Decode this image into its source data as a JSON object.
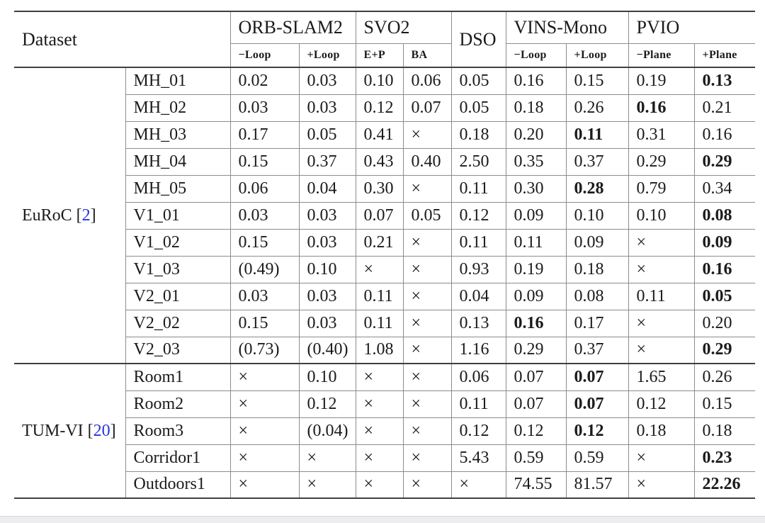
{
  "colors": {
    "citation_blue": "#2433e0",
    "rule_dark": "#3f3f3f",
    "rule_thin": "#8c8c8c",
    "text": "#1b1b1b",
    "footer_bar": "#ededef"
  },
  "table": {
    "header": {
      "dataset": "Dataset",
      "groups": [
        {
          "label": "ORB-SLAM2",
          "subs": [
            "−Loop",
            "+Loop"
          ]
        },
        {
          "label": "SVO2",
          "subs": [
            "E+P",
            "BA"
          ]
        },
        {
          "label": "DSO",
          "subs": []
        },
        {
          "label": "VINS-Mono",
          "subs": [
            "−Loop",
            "+Loop"
          ]
        },
        {
          "label": "PVIO",
          "subs": [
            "−Plane",
            "+Plane"
          ]
        }
      ]
    },
    "sections": [
      {
        "name": "EuRoC",
        "citation": "2",
        "rows": [
          {
            "seq": "MH_01",
            "cells": [
              "0.02",
              "0.03",
              "0.10",
              "0.06",
              "0.05",
              "0.16",
              "0.15",
              "0.19",
              "0.13"
            ],
            "bold": [
              8
            ]
          },
          {
            "seq": "MH_02",
            "cells": [
              "0.03",
              "0.03",
              "0.12",
              "0.07",
              "0.05",
              "0.18",
              "0.26",
              "0.16",
              "0.21"
            ],
            "bold": [
              7
            ]
          },
          {
            "seq": "MH_03",
            "cells": [
              "0.17",
              "0.05",
              "0.41",
              "×",
              "0.18",
              "0.20",
              "0.11",
              "0.31",
              "0.16"
            ],
            "bold": [
              6
            ]
          },
          {
            "seq": "MH_04",
            "cells": [
              "0.15",
              "0.37",
              "0.43",
              "0.40",
              "2.50",
              "0.35",
              "0.37",
              "0.29",
              "0.29"
            ],
            "bold": [
              8
            ]
          },
          {
            "seq": "MH_05",
            "cells": [
              "0.06",
              "0.04",
              "0.30",
              "×",
              "0.11",
              "0.30",
              "0.28",
              "0.79",
              "0.34"
            ],
            "bold": [
              6
            ]
          },
          {
            "seq": "V1_01",
            "cells": [
              "0.03",
              "0.03",
              "0.07",
              "0.05",
              "0.12",
              "0.09",
              "0.10",
              "0.10",
              "0.08"
            ],
            "bold": [
              8
            ]
          },
          {
            "seq": "V1_02",
            "cells": [
              "0.15",
              "0.03",
              "0.21",
              "×",
              "0.11",
              "0.11",
              "0.09",
              "×",
              "0.09"
            ],
            "bold": [
              8
            ]
          },
          {
            "seq": "V1_03",
            "cells": [
              "(0.49)",
              "0.10",
              "×",
              "×",
              "0.93",
              "0.19",
              "0.18",
              "×",
              "0.16"
            ],
            "bold": [
              8
            ]
          },
          {
            "seq": "V2_01",
            "cells": [
              "0.03",
              "0.03",
              "0.11",
              "×",
              "0.04",
              "0.09",
              "0.08",
              "0.11",
              "0.05"
            ],
            "bold": [
              8
            ]
          },
          {
            "seq": "V2_02",
            "cells": [
              "0.15",
              "0.03",
              "0.11",
              "×",
              "0.13",
              "0.16",
              "0.17",
              "×",
              "0.20"
            ],
            "bold": [
              5
            ]
          },
          {
            "seq": "V2_03",
            "cells": [
              "(0.73)",
              "(0.40)",
              "1.08",
              "×",
              "1.16",
              "0.29",
              "0.37",
              "×",
              "0.29"
            ],
            "bold": [
              8
            ]
          }
        ]
      },
      {
        "name": "TUM-VI",
        "citation": "20",
        "rows": [
          {
            "seq": "Room1",
            "cells": [
              "×",
              "0.10",
              "×",
              "×",
              "0.06",
              "0.07",
              "0.07",
              "1.65",
              "0.26"
            ],
            "bold": [
              6
            ]
          },
          {
            "seq": "Room2",
            "cells": [
              "×",
              "0.12",
              "×",
              "×",
              "0.11",
              "0.07",
              "0.07",
              "0.12",
              "0.15"
            ],
            "bold": [
              6
            ]
          },
          {
            "seq": "Room3",
            "cells": [
              "×",
              "(0.04)",
              "×",
              "×",
              "0.12",
              "0.12",
              "0.12",
              "0.18",
              "0.18"
            ],
            "bold": [
              6
            ]
          },
          {
            "seq": "Corridor1",
            "cells": [
              "×",
              "×",
              "×",
              "×",
              "5.43",
              "0.59",
              "0.59",
              "×",
              "0.23"
            ],
            "bold": [
              8
            ]
          },
          {
            "seq": "Outdoors1",
            "cells": [
              "×",
              "×",
              "×",
              "×",
              "×",
              "74.55",
              "81.57",
              "×",
              "22.26"
            ],
            "bold": [
              8
            ]
          }
        ]
      }
    ]
  }
}
